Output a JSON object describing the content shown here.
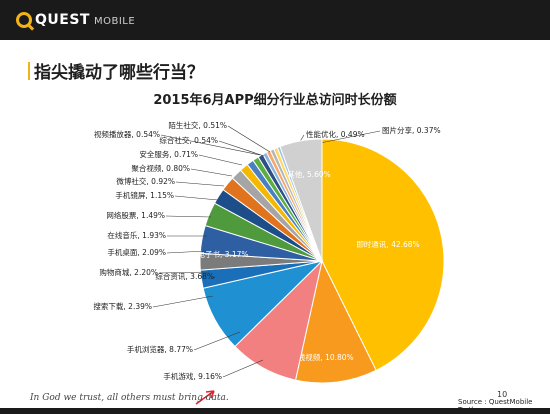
{
  "header": {
    "logo_main": "QUEST",
    "logo_sub": "MOBILE"
  },
  "headline": "指尖撬动了哪些行当？",
  "footer": {
    "quote": "In God we trust, all others must bring data.",
    "page_number": "10",
    "source": "Source : QuestMobile Truth"
  },
  "chart_data": {
    "type": "pie",
    "title": "2015年6月APP细分行业总访问时长份额",
    "unit": "%",
    "slices": [
      {
        "label": "即时通讯",
        "value": 42.68,
        "color": "#ffc000"
      },
      {
        "label": "在线视频",
        "value": 10.8,
        "color": "#f79a1e"
      },
      {
        "label": "手机游戏",
        "value": 9.16,
        "color": "#f28080"
      },
      {
        "label": "手机浏览器",
        "value": 8.77,
        "color": "#1f91d3"
      },
      {
        "label": "搜索下载",
        "value": 2.39,
        "color": "#1b6fb8"
      },
      {
        "label": "购物商城",
        "value": 2.2,
        "color": "#7b7b7b"
      },
      {
        "label": "综合资讯",
        "value": 3.68,
        "color": "#2e5fa3"
      },
      {
        "label": "电子书",
        "value": 3.17,
        "color": "#4f9a3c"
      },
      {
        "label": "手机桌面",
        "value": 2.09,
        "color": "#1d4e89"
      },
      {
        "label": "在线音乐",
        "value": 1.93,
        "color": "#e0731e"
      },
      {
        "label": "网络股票",
        "value": 1.49,
        "color": "#a5a5a5"
      },
      {
        "label": "手机镜屏",
        "value": 1.15,
        "color": "#f5b800"
      },
      {
        "label": "微博社交",
        "value": 0.92,
        "color": "#4a7fc1"
      },
      {
        "label": "聚合视频",
        "value": 0.8,
        "color": "#5cae3f"
      },
      {
        "label": "安全服务",
        "value": 0.71,
        "color": "#2d4f86"
      },
      {
        "label": "视频播放器",
        "value": 0.54,
        "color": "#8fb3dc"
      },
      {
        "label": "综合社交",
        "value": 0.54,
        "color": "#f4a96a"
      },
      {
        "label": "陌生社交",
        "value": 0.51,
        "color": "#b7b7b7"
      },
      {
        "label": "性能优化",
        "value": 0.49,
        "color": "#ffd966"
      },
      {
        "label": "图片分享",
        "value": 0.37,
        "color": "#9dc3e6"
      },
      {
        "label": "其他",
        "value": 5.6,
        "color": "#d0d0d0"
      }
    ]
  }
}
